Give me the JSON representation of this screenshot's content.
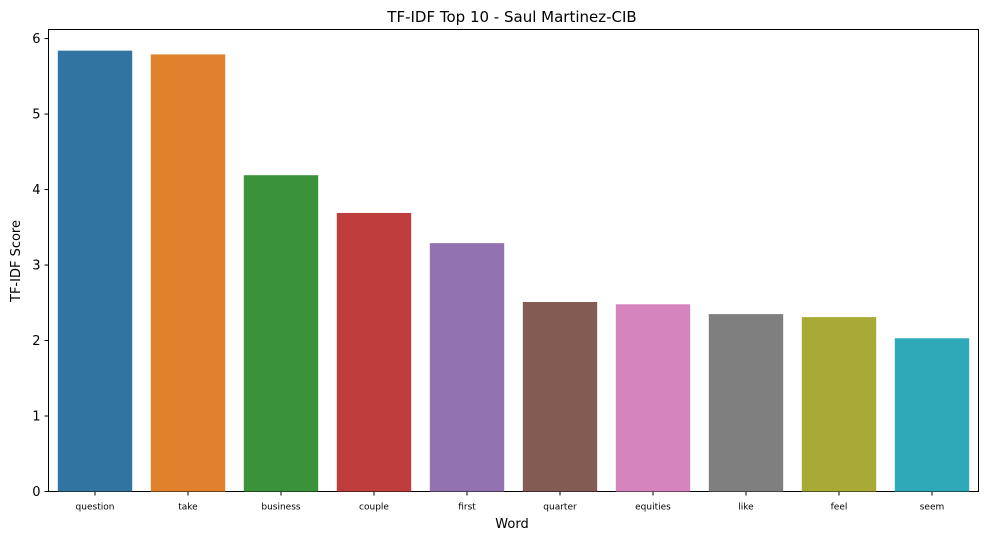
{
  "chart_data": {
    "type": "bar",
    "title": "TF-IDF Top 10 - Saul Martinez-CIB",
    "xlabel": "Word",
    "ylabel": "TF-IDF Score",
    "categories": [
      "question",
      "take",
      "business",
      "couple",
      "first",
      "quarter",
      "equities",
      "like",
      "feel",
      "seem"
    ],
    "values": [
      5.84,
      5.79,
      4.19,
      3.69,
      3.29,
      2.51,
      2.48,
      2.35,
      2.31,
      2.03
    ],
    "colors": [
      "#3274a1",
      "#e1812c",
      "#3a923a",
      "#c03d3e",
      "#9372b2",
      "#845b53",
      "#d684bd",
      "#7f7f7f",
      "#a9aa35",
      "#2ea9b8"
    ],
    "ylim": [
      0,
      6.12
    ],
    "yticks": [
      "0",
      "1",
      "2",
      "3",
      "4",
      "5",
      "6"
    ],
    "grid": false,
    "legend": "none"
  }
}
